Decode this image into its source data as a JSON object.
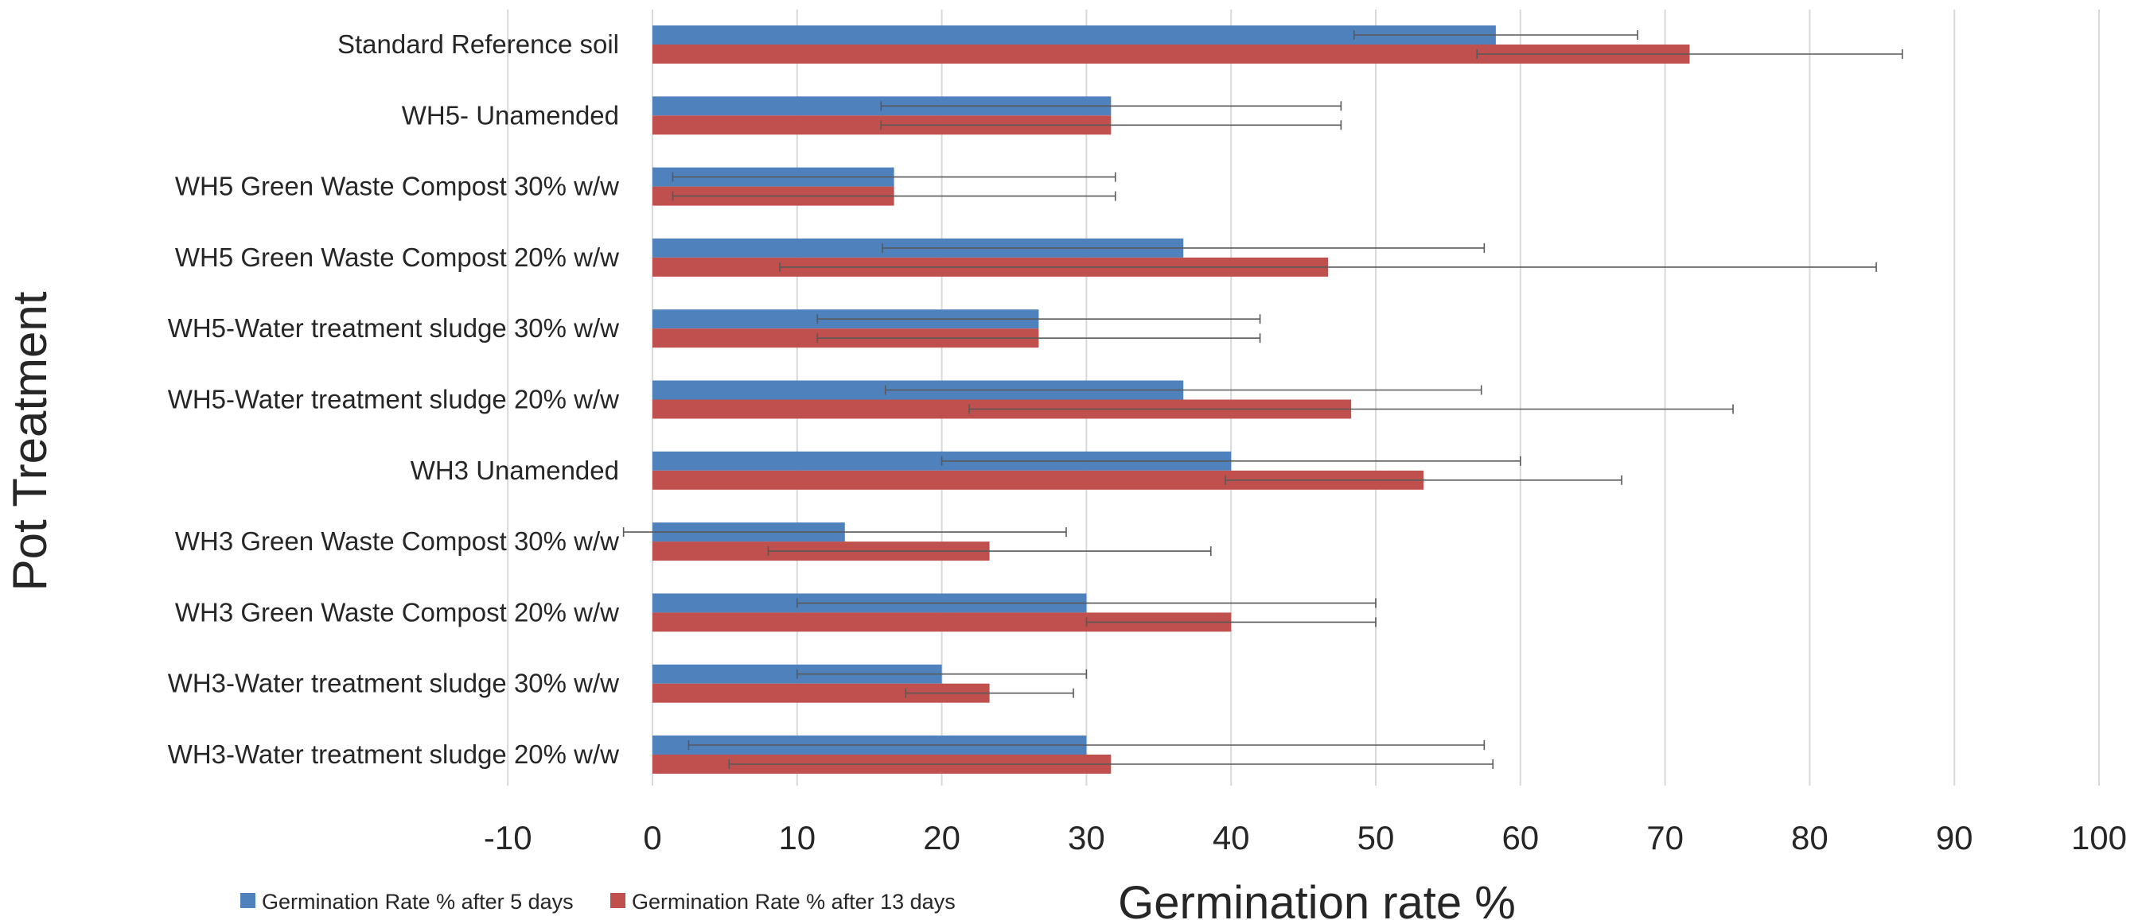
{
  "chart_data": {
    "type": "bar",
    "orientation": "horizontal",
    "title": "",
    "xlabel": "Germination rate %",
    "ylabel": "Pot Treatment",
    "xlim": [
      -10,
      100
    ],
    "xticks": [
      -10,
      0,
      10,
      20,
      30,
      40,
      50,
      60,
      70,
      80,
      90,
      100
    ],
    "grid": "vertical",
    "error_bars": true,
    "legend_position": "bottom-left",
    "categories": [
      "Standard Reference soil",
      "WH5- Unamended",
      "WH5 Green Waste Compost 30% w/w",
      "WH5 Green Waste Compost 20% w/w",
      "WH5-Water treatment sludge 30% w/w",
      "WH5-Water treatment sludge 20% w/w",
      "WH3 Unamended",
      "WH3 Green Waste Compost 30% w/w",
      "WH3 Green Waste Compost 20% w/w",
      "WH3-Water treatment sludge 30% w/w",
      "WH3-Water treatment sludge 20% w/w"
    ],
    "series": [
      {
        "name": "Germination Rate % after 5 days",
        "color": "#4f81bd",
        "values": [
          58.3,
          31.7,
          16.7,
          36.7,
          26.7,
          36.7,
          40.0,
          13.3,
          30.0,
          20.0,
          30.0
        ],
        "error": [
          9.8,
          15.9,
          15.3,
          20.8,
          15.3,
          20.6,
          20.0,
          15.3,
          20.0,
          10.0,
          27.5
        ]
      },
      {
        "name": "Germination Rate % after 13 days",
        "color": "#c0504d",
        "values": [
          71.7,
          31.7,
          16.7,
          46.7,
          26.7,
          48.3,
          53.3,
          23.3,
          40.0,
          23.3,
          31.7
        ],
        "error": [
          14.7,
          15.9,
          15.3,
          37.9,
          15.3,
          26.4,
          13.7,
          15.3,
          10.0,
          5.8,
          26.4
        ]
      }
    ]
  }
}
